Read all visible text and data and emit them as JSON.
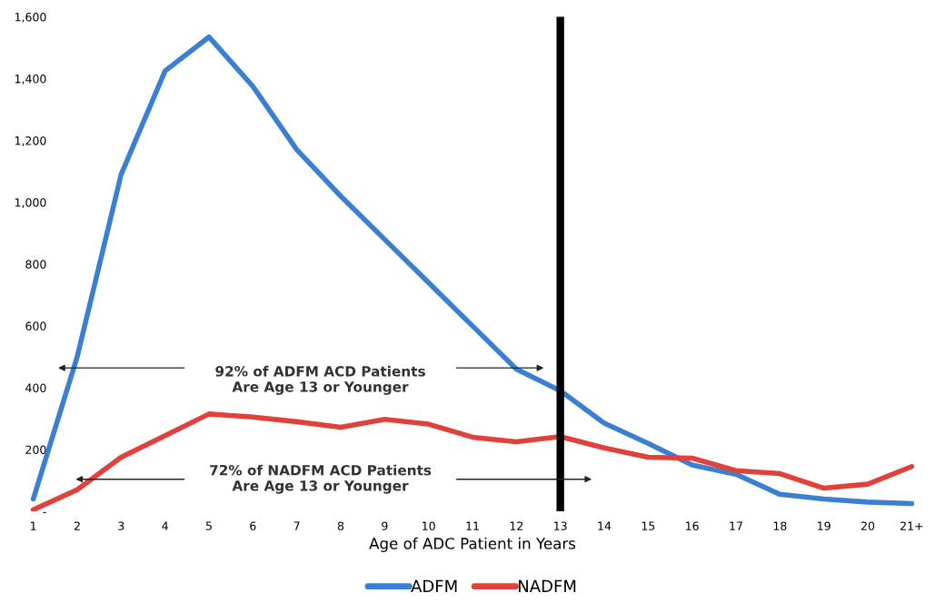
{
  "chart_data": {
    "type": "line",
    "xlabel": "Age of ADC Patient in Years",
    "categories": [
      "1",
      "2",
      "3",
      "4",
      "5",
      "6",
      "7",
      "8",
      "9",
      "10",
      "11",
      "12",
      "13",
      "14",
      "15",
      "16",
      "17",
      "18",
      "19",
      "20",
      "21+"
    ],
    "series": [
      {
        "name": "ADFM",
        "color": "#3a7fd0",
        "values": [
          40,
          500,
          1090,
          1425,
          1535,
          1375,
          1170,
          1020,
          880,
          740,
          600,
          460,
          390,
          285,
          220,
          150,
          120,
          55,
          40,
          30,
          25
        ]
      },
      {
        "name": "NADFM",
        "color": "#e0413a",
        "values": [
          5,
          70,
          175,
          245,
          315,
          305,
          290,
          272,
          298,
          282,
          240,
          225,
          242,
          205,
          175,
          172,
          132,
          122,
          75,
          88,
          145
        ]
      }
    ],
    "ylim": [
      0,
      1600
    ],
    "yticks": [
      {
        "value": 0,
        "label": "-"
      },
      {
        "value": 200,
        "label": "200"
      },
      {
        "value": 400,
        "label": "400"
      },
      {
        "value": 600,
        "label": "600"
      },
      {
        "value": 800,
        "label": "800"
      },
      {
        "value": 1000,
        "label": "1,000"
      },
      {
        "value": 1200,
        "label": "1,200"
      },
      {
        "value": 1400,
        "label": "1,400"
      },
      {
        "value": 1600,
        "label": "1,600"
      }
    ],
    "ref_lines": [
      {
        "axis": "x",
        "value": "13",
        "color": "#000000"
      }
    ],
    "annotations": [
      "92% of ADFM ACD Patients\nAre Age 13 or Younger",
      "72% of NADFM ACD Patients\nAre Age 13 or Younger"
    ],
    "grid": false,
    "legend": "bottom",
    "marker": "none",
    "line_style": "solid"
  }
}
